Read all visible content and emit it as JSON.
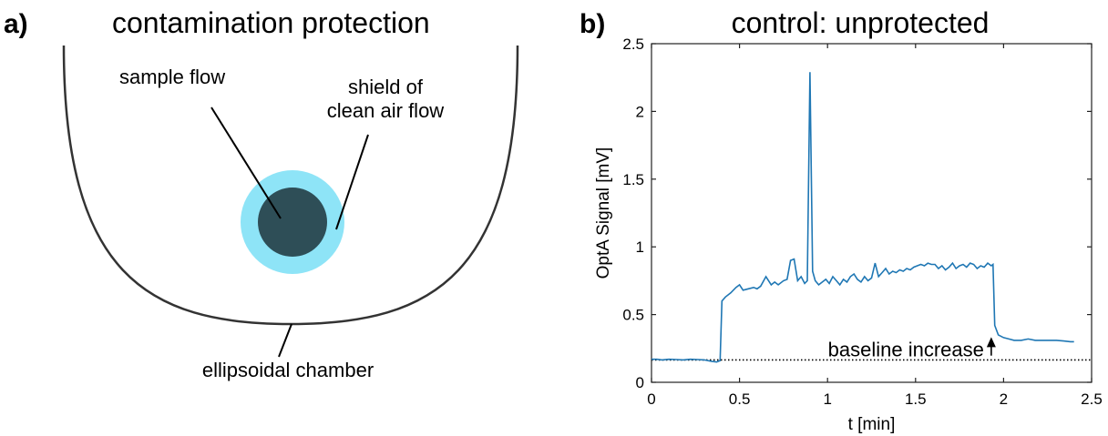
{
  "panel_a": {
    "letter": "a)",
    "title": "contamination protection",
    "labels": {
      "sample_flow": "sample flow",
      "shield_line1": "shield of",
      "shield_line2": "clean air flow",
      "chamber": "ellipsoidal chamber"
    },
    "colors": {
      "shield": "#8ee4f7",
      "sample": "#2e4e57",
      "chamber_line": "#333333"
    }
  },
  "panel_b": {
    "letter": "b)",
    "title": "control: unprotected",
    "annotation": "baseline increase"
  },
  "chart_data": {
    "type": "line",
    "title": "control: unprotected",
    "xlabel": "t [min]",
    "ylabel": "OptA Signal [mV]",
    "xlim": [
      0,
      2.5
    ],
    "ylim": [
      0,
      2.5
    ],
    "xticks": [
      0,
      0.5,
      1,
      1.5,
      2,
      2.5
    ],
    "yticks": [
      0,
      0.5,
      1,
      1.5,
      2,
      2.5
    ],
    "xtick_labels": [
      "0",
      "0.5",
      "1",
      "1.5",
      "2",
      "2.5"
    ],
    "ytick_labels": [
      "0",
      "0.5",
      "1",
      "1.5",
      "2",
      "2.5"
    ],
    "grid": false,
    "line_color": "#1f77b4",
    "baseline": {
      "y": 0.165,
      "style": "dotted"
    },
    "annotation": {
      "text": "baseline increase",
      "arrow_x": 1.93,
      "arrow_from_y": 0.17,
      "arrow_to_y": 0.32
    },
    "series": [
      {
        "x": [
          0,
          0.03,
          0.06,
          0.1,
          0.14,
          0.18,
          0.22,
          0.26,
          0.3,
          0.34,
          0.37,
          0.39,
          0.4,
          0.42,
          0.45,
          0.48,
          0.5,
          0.52,
          0.55,
          0.58,
          0.6,
          0.62,
          0.65,
          0.68,
          0.7,
          0.72,
          0.75,
          0.77,
          0.79,
          0.81,
          0.83,
          0.85,
          0.87,
          0.885,
          0.9,
          0.915,
          0.93,
          0.95,
          0.97,
          0.99,
          1.01,
          1.03,
          1.05,
          1.07,
          1.09,
          1.11,
          1.13,
          1.15,
          1.17,
          1.19,
          1.21,
          1.23,
          1.25,
          1.27,
          1.29,
          1.31,
          1.33,
          1.35,
          1.37,
          1.39,
          1.41,
          1.43,
          1.45,
          1.47,
          1.49,
          1.51,
          1.53,
          1.55,
          1.57,
          1.59,
          1.61,
          1.63,
          1.65,
          1.67,
          1.69,
          1.71,
          1.73,
          1.75,
          1.77,
          1.79,
          1.81,
          1.83,
          1.85,
          1.87,
          1.89,
          1.91,
          1.93,
          1.94,
          1.95,
          1.97,
          2.0,
          2.03,
          2.06,
          2.1,
          2.14,
          2.18,
          2.22,
          2.26,
          2.3,
          2.34,
          2.38,
          2.4
        ],
        "y": [
          0.17,
          0.17,
          0.165,
          0.17,
          0.168,
          0.165,
          0.17,
          0.168,
          0.165,
          0.155,
          0.15,
          0.16,
          0.6,
          0.63,
          0.66,
          0.7,
          0.72,
          0.68,
          0.69,
          0.7,
          0.69,
          0.71,
          0.78,
          0.72,
          0.74,
          0.72,
          0.75,
          0.76,
          0.9,
          0.91,
          0.75,
          0.78,
          0.73,
          0.75,
          2.29,
          0.82,
          0.75,
          0.72,
          0.74,
          0.76,
          0.73,
          0.78,
          0.75,
          0.72,
          0.76,
          0.74,
          0.78,
          0.8,
          0.76,
          0.74,
          0.78,
          0.75,
          0.77,
          0.88,
          0.78,
          0.81,
          0.84,
          0.8,
          0.82,
          0.81,
          0.83,
          0.82,
          0.84,
          0.83,
          0.85,
          0.86,
          0.87,
          0.86,
          0.88,
          0.87,
          0.87,
          0.84,
          0.86,
          0.83,
          0.85,
          0.88,
          0.84,
          0.86,
          0.87,
          0.85,
          0.88,
          0.87,
          0.84,
          0.86,
          0.85,
          0.88,
          0.86,
          0.87,
          0.42,
          0.35,
          0.33,
          0.32,
          0.31,
          0.31,
          0.32,
          0.31,
          0.31,
          0.31,
          0.31,
          0.305,
          0.3,
          0.3
        ]
      }
    ]
  }
}
